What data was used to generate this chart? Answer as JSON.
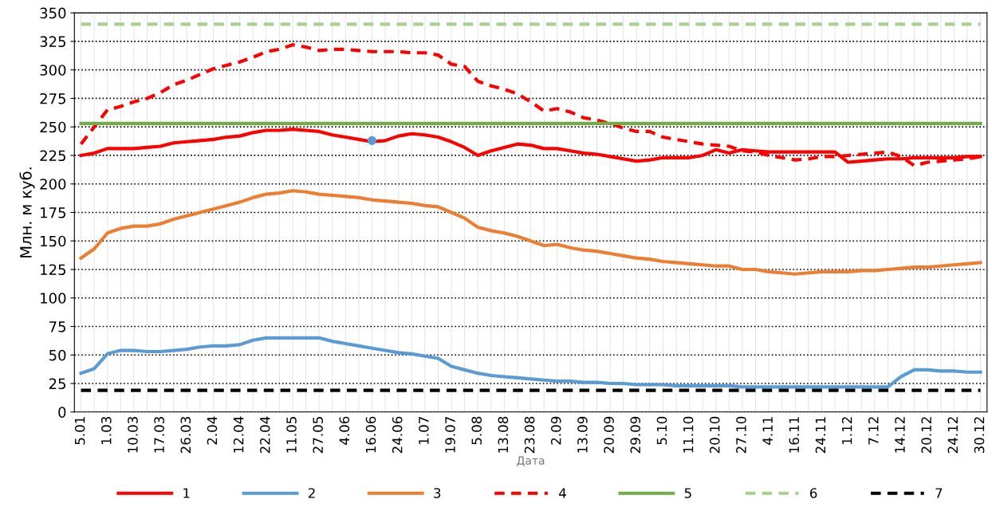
{
  "chart_data": {
    "type": "line",
    "xlabel": "Дата",
    "ylabel": "Млн. м куб.",
    "categories": [
      "5.01",
      null,
      "1.03",
      null,
      "10.03",
      null,
      "17.03",
      null,
      "26.03",
      null,
      "2.04",
      null,
      "12.04",
      null,
      "22.04",
      null,
      "11.05",
      null,
      "27.05",
      null,
      "4.06",
      null,
      "16.06",
      null,
      "24.06",
      null,
      "1.07",
      null,
      "19.07",
      null,
      "5.08",
      null,
      "13.08",
      null,
      "23.08",
      null,
      "2.09",
      null,
      "13.09",
      null,
      "20.09",
      null,
      "29.09",
      null,
      "5.10",
      null,
      "11.10",
      null,
      "20.10",
      null,
      "27.10",
      null,
      "4.11",
      null,
      "16.11",
      null,
      "24.11",
      null,
      "1.12",
      null,
      "7.12",
      null,
      "14.12",
      null,
      "20.12",
      null,
      "24.12",
      null,
      "30.12"
    ],
    "ylim": [
      0,
      350
    ],
    "yticks": [
      0,
      25,
      50,
      75,
      100,
      125,
      150,
      175,
      200,
      225,
      250,
      275,
      300,
      325,
      350
    ],
    "grid": true,
    "legend": "bottom",
    "series": [
      {
        "name": "1",
        "color": "#ff0000",
        "line_style": "solid",
        "values": [
          225,
          227,
          231,
          231,
          231,
          232,
          233,
          236,
          237,
          238,
          239,
          241,
          242,
          245,
          247,
          247,
          248,
          247,
          246,
          243,
          241,
          239,
          237,
          238,
          242,
          244,
          243,
          241,
          237,
          232,
          225,
          229,
          232,
          235,
          234,
          231,
          231,
          229,
          227,
          226,
          224,
          222,
          220,
          221,
          223,
          223,
          223,
          225,
          230,
          227,
          230,
          229,
          228,
          228,
          228,
          228,
          228,
          228,
          219,
          220,
          221,
          222,
          222,
          223,
          223,
          223,
          223,
          224,
          224
        ]
      },
      {
        "name": "2",
        "color": "#5b9bd5",
        "line_style": "solid",
        "values": [
          34,
          38,
          51,
          54,
          54,
          53,
          53,
          54,
          55,
          57,
          58,
          58,
          59,
          63,
          65,
          65,
          65,
          65,
          65,
          62,
          60,
          58,
          56,
          54,
          52,
          51,
          49,
          47,
          40,
          37,
          34,
          32,
          31,
          30,
          29,
          28,
          27,
          27,
          26,
          26,
          25,
          25,
          24,
          24,
          24,
          23,
          23,
          23,
          23,
          23,
          22,
          22,
          22,
          22,
          22,
          22,
          22,
          22,
          22,
          22,
          22,
          22,
          31,
          37,
          37,
          36,
          36,
          35,
          35
        ]
      },
      {
        "name": "3",
        "color": "#ed7d31",
        "line_style": "solid",
        "values": [
          135,
          143,
          157,
          161,
          163,
          163,
          165,
          169,
          172,
          175,
          178,
          181,
          184,
          188,
          191,
          192,
          194,
          193,
          191,
          190,
          189,
          188,
          186,
          185,
          184,
          183,
          181,
          180,
          175,
          170,
          162,
          159,
          157,
          154,
          150,
          146,
          147,
          144,
          142,
          141,
          139,
          137,
          135,
          134,
          132,
          131,
          130,
          129,
          128,
          128,
          125,
          125,
          123,
          122,
          121,
          122,
          123,
          123,
          123,
          124,
          124,
          125,
          126,
          127,
          127,
          128,
          129,
          130,
          131
        ]
      },
      {
        "name": "4",
        "color": "#ff0000",
        "line_style": "dashed",
        "values": [
          235,
          250,
          265,
          268,
          272,
          275,
          280,
          287,
          291,
          296,
          301,
          304,
          307,
          311,
          316,
          318,
          322,
          320,
          317,
          318,
          318,
          317,
          316,
          316,
          316,
          315,
          315,
          313,
          305,
          303,
          290,
          286,
          283,
          279,
          272,
          264,
          266,
          263,
          258,
          256,
          253,
          249,
          246,
          246,
          241,
          239,
          237,
          235,
          234,
          233,
          229,
          228,
          225,
          223,
          221,
          222,
          224,
          224,
          225,
          226,
          227,
          228,
          224,
          216,
          219,
          220,
          221,
          222,
          224
        ]
      },
      {
        "name": "5",
        "color": "#70ad47",
        "line_style": "solid",
        "values": [
          253,
          253,
          253,
          253,
          253,
          253,
          253,
          253,
          253,
          253,
          253,
          253,
          253,
          253,
          253,
          253,
          253,
          253,
          253,
          253,
          253,
          253,
          253,
          253,
          253,
          253,
          253,
          253,
          253,
          253,
          253,
          253,
          253,
          253,
          253,
          253,
          253,
          253,
          253,
          253,
          253,
          253,
          253,
          253,
          253,
          253,
          253,
          253,
          253,
          253,
          253,
          253,
          253,
          253,
          253,
          253,
          253,
          253,
          253,
          253,
          253,
          253,
          253,
          253,
          253,
          253,
          253,
          253,
          253
        ]
      },
      {
        "name": "6",
        "color": "#a9d18e",
        "line_style": "dashed",
        "values": [
          340,
          340,
          340,
          340,
          340,
          340,
          340,
          340,
          340,
          340,
          340,
          340,
          340,
          340,
          340,
          340,
          340,
          340,
          340,
          340,
          340,
          340,
          340,
          340,
          340,
          340,
          340,
          340,
          340,
          340,
          340,
          340,
          340,
          340,
          340,
          340,
          340,
          340,
          340,
          340,
          340,
          340,
          340,
          340,
          340,
          340,
          340,
          340,
          340,
          340,
          340,
          340,
          340,
          340,
          340,
          340,
          340,
          340,
          340,
          340,
          340,
          340,
          340,
          340,
          340,
          340,
          340,
          340,
          340
        ]
      },
      {
        "name": "7",
        "color": "#000000",
        "line_style": "dashed",
        "values": [
          19,
          19,
          19,
          19,
          19,
          19,
          19,
          19,
          19,
          19,
          19,
          19,
          19,
          19,
          19,
          19,
          19,
          19,
          19,
          19,
          19,
          19,
          19,
          19,
          19,
          19,
          19,
          19,
          19,
          19,
          19,
          19,
          19,
          19,
          19,
          19,
          19,
          19,
          19,
          19,
          19,
          19,
          19,
          19,
          19,
          19,
          19,
          19,
          19,
          19,
          19,
          19,
          19,
          19,
          19,
          19,
          19,
          19,
          19,
          19,
          19,
          19,
          19,
          19,
          19,
          19,
          19,
          19,
          19
        ]
      },
      {
        "type": "scatter",
        "color": "#5b9bd5",
        "marker": "circle",
        "values": [
          null,
          null,
          null,
          null,
          null,
          null,
          null,
          null,
          null,
          null,
          null,
          null,
          null,
          null,
          null,
          null,
          null,
          null,
          null,
          null,
          null,
          null,
          238,
          null,
          null,
          null,
          null,
          null,
          null,
          null,
          null,
          null,
          null,
          null,
          null,
          null,
          null,
          null,
          null,
          null,
          null,
          null,
          null,
          null,
          null,
          null,
          null,
          null,
          null,
          null,
          null,
          null,
          null,
          null,
          null,
          null,
          null,
          null,
          null,
          null,
          null,
          null,
          null,
          null,
          null,
          null,
          null,
          null,
          null
        ]
      }
    ]
  }
}
